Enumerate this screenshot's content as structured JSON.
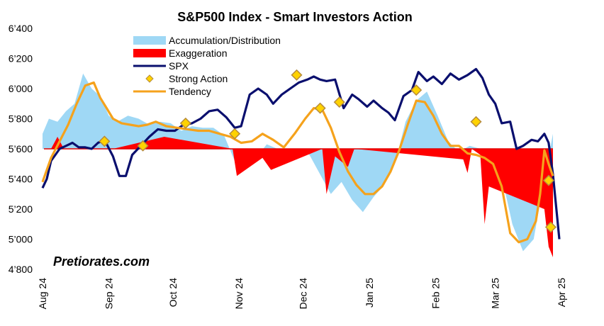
{
  "chart_data": {
    "type": "line",
    "title": "S&P500 Index - Smart Investors Action",
    "watermark": "Pretiorates.com",
    "x_range": [
      "2024-08-01",
      "2025-04-01"
    ],
    "ylim": [
      4800,
      6400
    ],
    "y_ticks": [
      "6’400",
      "6’200",
      "6’000",
      "5’800",
      "5’600",
      "5’400",
      "5’200",
      "5’000",
      "4’800"
    ],
    "y_tick_values": [
      6400,
      6200,
      6000,
      5800,
      5600,
      5400,
      5200,
      5000,
      4800
    ],
    "x_ticks": [
      "Aug 24",
      "Sep 24",
      "Oct 24",
      "Nov 24",
      "Dec 24",
      "Jan 25",
      "Feb 25",
      "Mar 25",
      "Apr 25"
    ],
    "x_tick_dates": [
      "2024-08-01",
      "2024-09-01",
      "2024-10-01",
      "2024-11-01",
      "2024-12-01",
      "2025-01-01",
      "2025-02-01",
      "2025-03-01",
      "2025-04-01"
    ],
    "baseline": 5600,
    "legend": [
      {
        "label": "Accumulation/Distribution",
        "color": "#9fd8f5",
        "kind": "band"
      },
      {
        "label": "Exaggeration",
        "color": "#ff0000",
        "kind": "band"
      },
      {
        "label": "SPX",
        "color": "#0a0f6e",
        "kind": "line"
      },
      {
        "label": "Strong Action",
        "color": "#ffd200",
        "kind": "diamond"
      },
      {
        "label": "Tendency",
        "color": "#f5a21c",
        "kind": "line"
      }
    ],
    "series": [
      {
        "name": "SPX",
        "color": "#0a0f6e",
        "x": [
          "2024-08-01",
          "2024-08-03",
          "2024-08-05",
          "2024-08-07",
          "2024-08-09",
          "2024-08-12",
          "2024-08-15",
          "2024-08-18",
          "2024-08-21",
          "2024-08-24",
          "2024-08-27",
          "2024-08-30",
          "2024-09-03",
          "2024-09-06",
          "2024-09-09",
          "2024-09-12",
          "2024-09-16",
          "2024-09-20",
          "2024-09-24",
          "2024-09-28",
          "2024-10-02",
          "2024-10-06",
          "2024-10-10",
          "2024-10-14",
          "2024-10-18",
          "2024-10-22",
          "2024-10-26",
          "2024-10-30",
          "2024-11-02",
          "2024-11-06",
          "2024-11-10",
          "2024-11-14",
          "2024-11-17",
          "2024-11-21",
          "2024-11-25",
          "2024-11-29",
          "2024-12-03",
          "2024-12-06",
          "2024-12-09",
          "2024-12-12",
          "2024-12-16",
          "2024-12-20",
          "2024-12-24",
          "2024-12-27",
          "2024-12-31",
          "2025-01-03",
          "2025-01-07",
          "2025-01-10",
          "2025-01-13",
          "2025-01-17",
          "2025-01-21",
          "2025-01-24",
          "2025-01-28",
          "2025-01-31",
          "2025-02-04",
          "2025-02-08",
          "2025-02-12",
          "2025-02-16",
          "2025-02-20",
          "2025-02-23",
          "2025-02-26",
          "2025-03-01",
          "2025-03-04",
          "2025-03-08",
          "2025-03-11",
          "2025-03-14",
          "2025-03-18",
          "2025-03-21",
          "2025-03-24",
          "2025-03-26",
          "2025-03-28",
          "2025-03-31"
        ],
        "values": [
          5340,
          5400,
          5520,
          5560,
          5600,
          5620,
          5640,
          5610,
          5610,
          5600,
          5640,
          5660,
          5550,
          5420,
          5420,
          5560,
          5620,
          5680,
          5730,
          5720,
          5720,
          5760,
          5770,
          5800,
          5850,
          5860,
          5810,
          5740,
          5750,
          5960,
          6000,
          5960,
          5900,
          5960,
          6000,
          6040,
          6060,
          6080,
          6060,
          6050,
          6060,
          5870,
          5960,
          5930,
          5880,
          5920,
          5870,
          5840,
          5790,
          5950,
          5990,
          6110,
          6050,
          6080,
          6030,
          6100,
          6060,
          6090,
          6130,
          6070,
          5960,
          5900,
          5770,
          5780,
          5600,
          5620,
          5660,
          5650,
          5700,
          5640,
          5430,
          5000
        ]
      },
      {
        "name": "Tendency",
        "color": "#f5a21c",
        "x": [
          "2024-08-01",
          "2024-08-05",
          "2024-08-09",
          "2024-08-13",
          "2024-08-17",
          "2024-08-21",
          "2024-08-25",
          "2024-08-28",
          "2024-08-31",
          "2024-09-03",
          "2024-09-07",
          "2024-09-11",
          "2024-09-15",
          "2024-09-19",
          "2024-09-23",
          "2024-09-28",
          "2024-10-03",
          "2024-10-08",
          "2024-10-13",
          "2024-10-18",
          "2024-10-23",
          "2024-10-28",
          "2024-11-02",
          "2024-11-07",
          "2024-11-12",
          "2024-11-17",
          "2024-11-22",
          "2024-11-27",
          "2024-12-02",
          "2024-12-06",
          "2024-12-10",
          "2024-12-14",
          "2024-12-18",
          "2024-12-22",
          "2024-12-26",
          "2024-12-30",
          "2025-01-03",
          "2025-01-07",
          "2025-01-11",
          "2025-01-15",
          "2025-01-19",
          "2025-01-23",
          "2025-01-27",
          "2025-01-31",
          "2025-02-04",
          "2025-02-08",
          "2025-02-12",
          "2025-02-16",
          "2025-02-20",
          "2025-02-24",
          "2025-02-28",
          "2025-03-04",
          "2025-03-08",
          "2025-03-12",
          "2025-03-16",
          "2025-03-20",
          "2025-03-22",
          "2025-03-24",
          "2025-03-26",
          "2025-03-28"
        ],
        "values": [
          5380,
          5540,
          5650,
          5760,
          5900,
          6020,
          6040,
          5940,
          5870,
          5800,
          5770,
          5760,
          5750,
          5760,
          5780,
          5750,
          5740,
          5730,
          5720,
          5720,
          5700,
          5680,
          5640,
          5650,
          5700,
          5660,
          5610,
          5700,
          5800,
          5870,
          5860,
          5740,
          5580,
          5450,
          5360,
          5300,
          5300,
          5350,
          5450,
          5590,
          5760,
          5920,
          5910,
          5820,
          5700,
          5620,
          5620,
          5570,
          5560,
          5540,
          5500,
          5350,
          5040,
          4980,
          5000,
          5120,
          5300,
          5590,
          5500,
          5420
        ]
      }
    ],
    "strong_action": [
      {
        "date": "2024-08-30",
        "value": 5650
      },
      {
        "date": "2024-09-17",
        "value": 5620
      },
      {
        "date": "2024-10-07",
        "value": 5770
      },
      {
        "date": "2024-10-30",
        "value": 5700
      },
      {
        "date": "2024-11-28",
        "value": 6090
      },
      {
        "date": "2024-12-09",
        "value": 5870
      },
      {
        "date": "2024-12-18",
        "value": 5910
      },
      {
        "date": "2025-01-23",
        "value": 5990
      },
      {
        "date": "2025-02-20",
        "value": 5780
      },
      {
        "date": "2025-03-26",
        "value": 5390
      },
      {
        "date": "2025-03-27",
        "value": 5080
      }
    ],
    "accumulation_distribution": {
      "x": [
        "2024-08-01",
        "2024-08-04",
        "2024-08-08",
        "2024-08-12",
        "2024-08-16",
        "2024-08-20",
        "2024-08-24",
        "2024-08-28",
        "2024-09-01",
        "2024-09-05",
        "2024-09-10",
        "2024-09-15",
        "2024-09-20",
        "2024-09-25",
        "2024-09-30",
        "2024-10-05",
        "2024-10-10",
        "2024-10-15",
        "2024-10-20",
        "2024-10-25",
        "2024-10-30",
        "2024-11-04",
        "2024-11-09",
        "2024-11-14",
        "2024-11-19",
        "2024-11-24",
        "2024-11-29",
        "2024-12-04",
        "2024-12-09",
        "2024-12-14",
        "2024-12-19",
        "2024-12-24",
        "2024-12-29",
        "2025-01-03",
        "2025-01-08",
        "2025-01-13",
        "2025-01-18",
        "2025-01-23",
        "2025-01-28",
        "2025-02-02",
        "2025-02-07",
        "2025-02-12",
        "2025-02-17",
        "2025-02-22",
        "2025-02-27",
        "2025-03-04",
        "2025-03-09",
        "2025-03-14",
        "2025-03-19",
        "2025-03-24",
        "2025-03-28"
      ],
      "values": [
        5700,
        5800,
        5780,
        5850,
        5900,
        6100,
        6000,
        5950,
        5820,
        5780,
        5820,
        5800,
        5760,
        5780,
        5770,
        5720,
        5750,
        5740,
        5740,
        5690,
        5520,
        5600,
        5540,
        5630,
        5600,
        5580,
        5600,
        5560,
        5430,
        5300,
        5380,
        5260,
        5180,
        5280,
        5360,
        5500,
        5780,
        5920,
        5980,
        5820,
        5650,
        5580,
        5620,
        5600,
        5500,
        5420,
        5100,
        4920,
        5000,
        5400,
        5700
      ]
    },
    "exaggeration": {
      "x": [
        "2024-08-05",
        "2024-08-08",
        "2024-08-11",
        "2024-09-03",
        "2024-09-27",
        "2024-10-29",
        "2024-10-31",
        "2024-11-12",
        "2024-11-16",
        "2024-12-10",
        "2024-12-12",
        "2024-12-16",
        "2024-12-22",
        "2024-12-25",
        "2025-02-14",
        "2025-02-16",
        "2025-02-18",
        "2025-02-22",
        "2025-02-24",
        "2025-02-26",
        "2025-03-24",
        "2025-03-26",
        "2025-03-28"
      ],
      "values": [
        5600,
        5680,
        5600,
        5600,
        5680,
        5600,
        5420,
        5540,
        5460,
        5600,
        5300,
        5550,
        5480,
        5600,
        5530,
        5440,
        5600,
        5560,
        5100,
        5350,
        5200,
        4950,
        4880
      ]
    }
  }
}
